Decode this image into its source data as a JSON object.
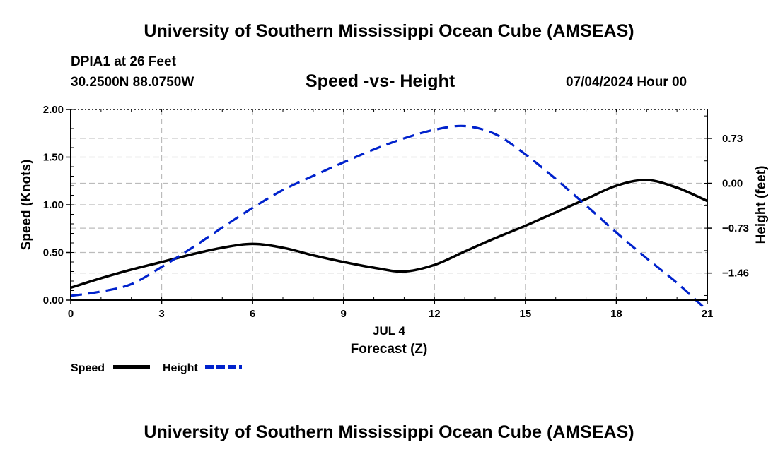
{
  "header": {
    "title": "University of Southern Mississippi Ocean Cube (AMSEAS)",
    "station": "DPIA1 at 26 Feet",
    "coordinates": "30.2500N  88.0750W",
    "datetime": "07/04/2024 Hour 00"
  },
  "footer": {
    "title": "University of Southern Mississippi Ocean Cube (AMSEAS)"
  },
  "chart_data": {
    "type": "line",
    "title": "Speed -vs- Height",
    "xlabel": "Forecast (Z)",
    "date_label": "JUL 4",
    "ylabel": "Speed (Knots)",
    "y2label": "Height (feet)",
    "xlim": [
      0,
      21
    ],
    "ylim": [
      0,
      2.0
    ],
    "y2lim": [
      -1.9,
      1.2
    ],
    "x_ticks": [
      "0",
      "3",
      "6",
      "9",
      "12",
      "15",
      "18",
      "21"
    ],
    "y_ticks": [
      "0.00",
      "0.50",
      "1.00",
      "1.50",
      "2.00"
    ],
    "y2_ticks": [
      "-1.46",
      "-0.73",
      "0.00",
      "0.73"
    ],
    "grid": true,
    "legend_position": "bottom-left",
    "series": [
      {
        "name": "Speed",
        "axis": "left",
        "color": "#000000",
        "style": "solid",
        "x": [
          0,
          1,
          2,
          3,
          4,
          5,
          6,
          7,
          8,
          9,
          10,
          11,
          12,
          13,
          14,
          15,
          16,
          17,
          18,
          19,
          20,
          21
        ],
        "values": [
          0.13,
          0.23,
          0.32,
          0.4,
          0.48,
          0.55,
          0.59,
          0.55,
          0.47,
          0.4,
          0.34,
          0.3,
          0.37,
          0.51,
          0.65,
          0.78,
          0.92,
          1.06,
          1.2,
          1.26,
          1.18,
          1.04
        ]
      },
      {
        "name": "Height",
        "axis": "right",
        "color": "#0022cc",
        "style": "dashed",
        "x": [
          0,
          1,
          2,
          3,
          4,
          5,
          6,
          7,
          8,
          9,
          10,
          11,
          12,
          13,
          14,
          15,
          16,
          17,
          18,
          19,
          20,
          21
        ],
        "values": [
          -1.83,
          -1.76,
          -1.64,
          -1.36,
          -1.05,
          -0.72,
          -0.4,
          -0.11,
          0.12,
          0.34,
          0.55,
          0.73,
          0.87,
          0.93,
          0.8,
          0.47,
          0.07,
          -0.36,
          -0.8,
          -1.22,
          -1.62,
          -2.07
        ]
      }
    ]
  }
}
